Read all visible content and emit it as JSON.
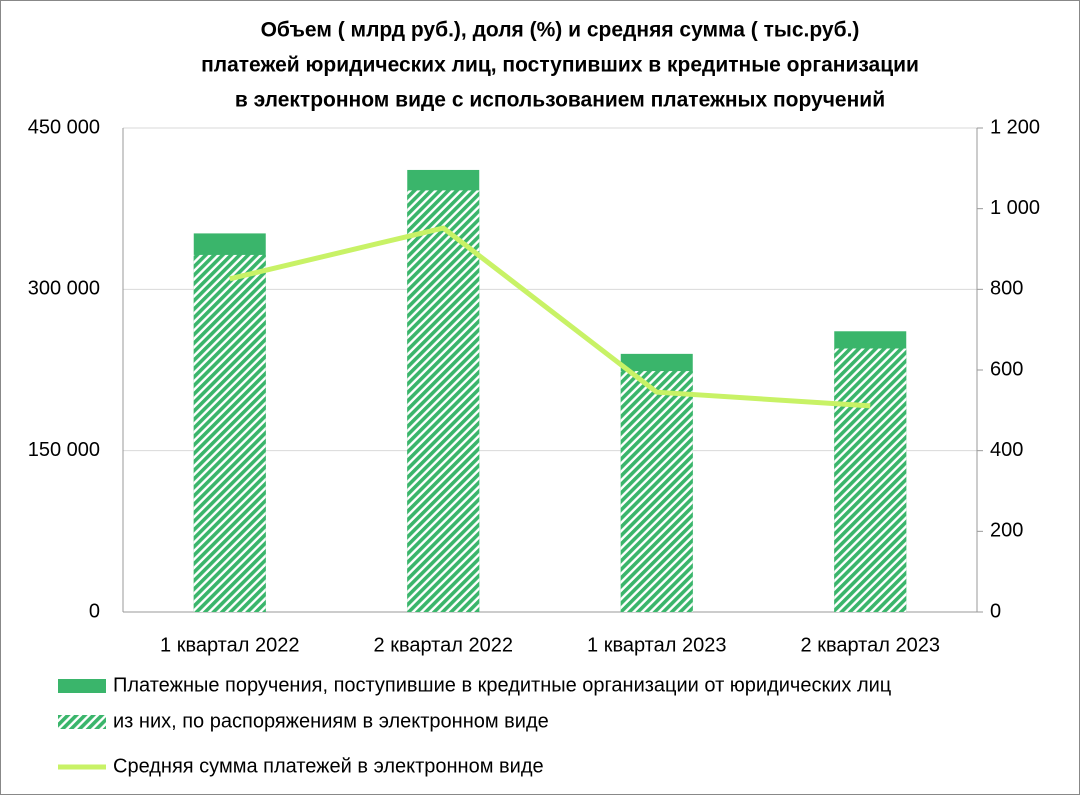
{
  "chart_data": {
    "type": "bar",
    "title": [
      "Объем ( млрд руб.), доля (%) и средняя сумма ( тыс.руб.)",
      "платежей юридических лиц, поступивших в кредитные организации",
      "в  электронном виде с использованием платежных поручений"
    ],
    "categories": [
      "1 квартал 2022",
      "2 квартал 2022",
      "1 квартал 2023",
      "2 квартал 2023"
    ],
    "series": [
      {
        "name": "Платежные поручения, поступившие в кредитные организации от юридических лиц",
        "color": "#3ab56b",
        "values": [
          352000,
          411000,
          240000,
          261000
        ]
      },
      {
        "name": "из них, по распоряжениям в электронном виде",
        "color": "#3ab56b",
        "pattern": "hatch",
        "values": [
          332000,
          392000,
          224000,
          245000
        ]
      },
      {
        "name": "Средняя сумма платежей в электронном виде",
        "color": "#c8f266",
        "type": "line",
        "axis": "y2",
        "values": [
          826,
          952,
          545,
          511
        ]
      }
    ],
    "ylim": [
      0,
      450000
    ],
    "yticks": [
      0,
      {
        "value": 150000,
        "label": "150 000"
      },
      {
        "value": 300000,
        "label": "300 000"
      },
      {
        "value": 450000,
        "label": "450 000"
      }
    ],
    "y2lim": [
      0,
      1200
    ],
    "y2ticks": [
      0,
      200,
      400,
      600,
      800,
      {
        "value": 1000,
        "label": "1 000"
      },
      {
        "value": 1200,
        "label": "1 200"
      }
    ],
    "grid": true,
    "legend": "bottom"
  }
}
